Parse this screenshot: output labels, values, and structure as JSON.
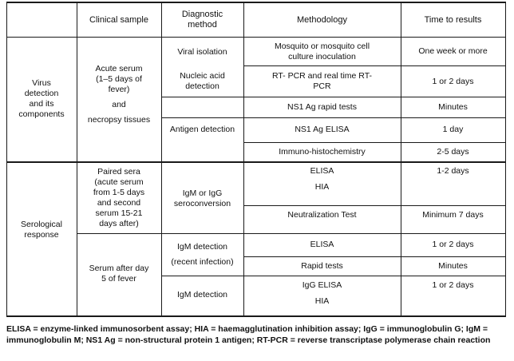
{
  "table": {
    "headers": {
      "clinical_sample": "Clinical sample",
      "diagnostic_method": [
        "Diagnostic",
        "method"
      ],
      "methodology": "Methodology",
      "time_to_results": "Time to results"
    },
    "categories": {
      "virus_detection": [
        "Virus",
        "detection",
        "and its",
        "components"
      ],
      "serological_response": [
        "Serological",
        "response"
      ]
    },
    "samples": {
      "acute_serum": [
        "Acute serum",
        "(1–5 days of",
        "fever)",
        "and",
        "necropsy tissues"
      ],
      "paired_sera": [
        "Paired sera",
        "(acute serum",
        "from 1-5 days",
        "and second",
        "serum 15-21",
        "days after)"
      ],
      "serum_after_day5": [
        "Serum after day",
        "5 of fever"
      ]
    },
    "methods": {
      "viral_isolation": "Viral isolation",
      "nucleic_acid": [
        "Nucleic acid",
        "detection"
      ],
      "antigen_detection": "Antigen detection",
      "igm_igg": [
        "IgM or IgG",
        "seroconversion"
      ],
      "igm_detection_recent": [
        "IgM detection",
        "(recent infection)"
      ],
      "igm_detection": "IgM detection"
    },
    "methodologies": {
      "mosquito": [
        "Mosquito or mosquito cell",
        "culture inoculation"
      ],
      "rt_pcr": [
        "RT- PCR and real time RT-",
        "PCR"
      ],
      "ns1_rapid": "NS1 Ag rapid tests",
      "ns1_elisa": "NS1 Ag ELISA",
      "immuno": "Immuno-histochemistry",
      "elisa_hia": [
        "ELISA",
        "HIA"
      ],
      "neutralization": "Neutralization Test",
      "elisa": "ELISA",
      "rapid_tests": "Rapid tests",
      "igg_elisa_hia": [
        "IgG ELISA",
        "HIA"
      ]
    },
    "times": {
      "one_week": "One week or more",
      "one_or_two_days_a": "1 or 2 days",
      "minutes_a": "Minutes",
      "one_day": "1 day",
      "two_five_days": "2-5 days",
      "one_two_days": "1-2 days",
      "minimum_7_days": "Minimum 7 days",
      "one_or_two_days_b": "1 or 2 days",
      "minutes_b": "Minutes",
      "one_or_two_days_c": "1 or 2 days"
    }
  },
  "footnote": "ELISA = enzyme-linked immunosorbent assay; HIA = haemagglutination inhibition assay; IgG = immunoglobulin G; IgM = immunoglobulin M; NS1 Ag = non-structural protein 1 antigen; RT-PCR = reverse transcriptase polymerase chain reaction"
}
